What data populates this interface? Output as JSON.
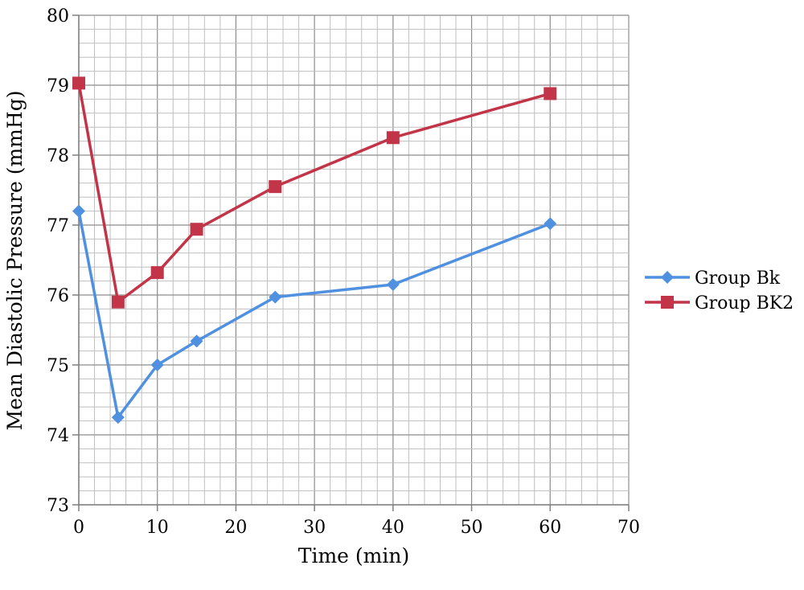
{
  "chart_data": {
    "type": "line",
    "xlabel": "Time (min)",
    "ylabel": "Mean Diastolic Pressure (mmHg)",
    "xlim": [
      0,
      70
    ],
    "ylim": [
      73,
      80
    ],
    "x_ticks": [
      "0",
      "10",
      "20",
      "30",
      "40",
      "50",
      "60",
      "70"
    ],
    "y_ticks": [
      "73",
      "74",
      "75",
      "76",
      "77",
      "78",
      "79",
      "80"
    ],
    "grid": true,
    "legend_position": "right",
    "series": [
      {
        "name": "Group Bk",
        "color": "#4f90e0",
        "marker": "diamond",
        "x": [
          0,
          5,
          10,
          15,
          25,
          40,
          60
        ],
        "values": [
          77.2,
          74.25,
          75.0,
          75.34,
          75.97,
          76.15,
          77.02
        ]
      },
      {
        "name": "Group BK2",
        "color": "#c23548",
        "marker": "square",
        "x": [
          0,
          5,
          10,
          15,
          25,
          40,
          60
        ],
        "values": [
          79.03,
          75.9,
          76.32,
          76.94,
          77.55,
          78.25,
          78.88
        ]
      }
    ]
  }
}
